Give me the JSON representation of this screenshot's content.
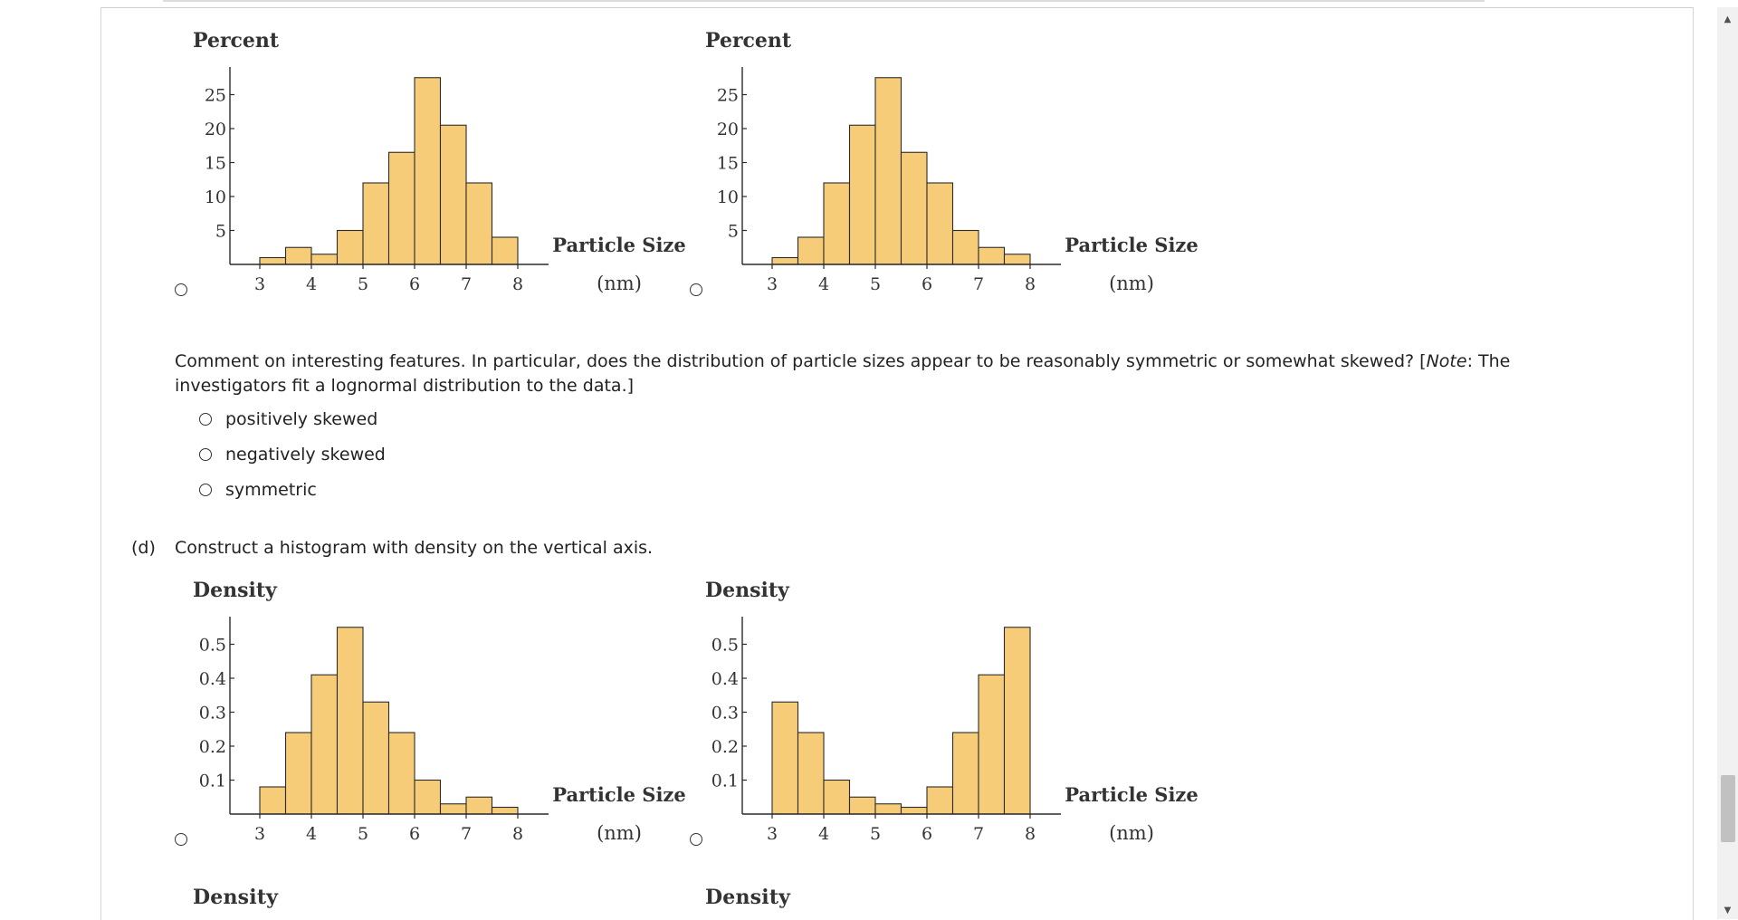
{
  "colors": {
    "bar_fill": "#f7cc78",
    "bar_stroke": "#2b2b2b",
    "axis": "#2b2b2b"
  },
  "question_c": {
    "prompt_part1": "Comment on interesting features. In particular, does the distribution of particle sizes appear to be reasonably symmetric or somewhat skewed? [",
    "prompt_note": "Note",
    "prompt_part2": ": The",
    "prompt_line2": "investigators fit a lognormal distribution to the data.]",
    "options": [
      {
        "label": "positively skewed"
      },
      {
        "label": "negatively skewed"
      },
      {
        "label": "symmetric"
      }
    ]
  },
  "question_d": {
    "part_label": "(d)",
    "prompt": "Construct a histogram with density on the vertical axis."
  },
  "tail_labels": [
    "Density",
    "Density"
  ],
  "chart_data": [
    {
      "type": "bar",
      "ylabel": "Percent",
      "xlabel_line1": "Particle Size",
      "xlabel_line2": "(nm)",
      "bin_edges": [
        3,
        3.5,
        4,
        4.5,
        5,
        5.5,
        6,
        6.5,
        7,
        7.5,
        8
      ],
      "values": [
        1,
        2.5,
        1.5,
        5,
        12,
        16.5,
        27.5,
        20.5,
        12,
        4
      ],
      "yticks": [
        5,
        10,
        15,
        20,
        25
      ],
      "ytick_labels": [
        "5",
        "10",
        "15",
        "20",
        "25"
      ],
      "xticks": [
        3,
        4,
        5,
        6,
        7,
        8
      ],
      "xtick_labels": [
        "3",
        "4",
        "5",
        "6",
        "7",
        "8"
      ],
      "ylim": [
        0,
        30
      ]
    },
    {
      "type": "bar",
      "ylabel": "Percent",
      "xlabel_line1": "Particle Size",
      "xlabel_line2": "(nm)",
      "bin_edges": [
        3,
        3.5,
        4,
        4.5,
        5,
        5.5,
        6,
        6.5,
        7,
        7.5,
        8
      ],
      "values": [
        1,
        4,
        12,
        20.5,
        27.5,
        16.5,
        12,
        5,
        2.5,
        1.5
      ],
      "yticks": [
        5,
        10,
        15,
        20,
        25
      ],
      "ytick_labels": [
        "5",
        "10",
        "15",
        "20",
        "25"
      ],
      "xticks": [
        3,
        4,
        5,
        6,
        7,
        8
      ],
      "xtick_labels": [
        "3",
        "4",
        "5",
        "6",
        "7",
        "8"
      ],
      "ylim": [
        0,
        30
      ]
    },
    {
      "type": "bar",
      "ylabel": "Density",
      "xlabel_line1": "Particle Size",
      "xlabel_line2": "(nm)",
      "bin_edges": [
        3,
        3.5,
        4,
        4.5,
        5,
        5.5,
        6,
        6.5,
        7,
        7.5,
        8
      ],
      "values": [
        0.08,
        0.24,
        0.41,
        0.55,
        0.33,
        0.24,
        0.1,
        0.03,
        0.05,
        0.02
      ],
      "yticks": [
        0.1,
        0.2,
        0.3,
        0.4,
        0.5
      ],
      "ytick_labels": [
        "0.1",
        "0.2",
        "0.3",
        "0.4",
        "0.5"
      ],
      "xticks": [
        3,
        4,
        5,
        6,
        7,
        8
      ],
      "xtick_labels": [
        "3",
        "4",
        "5",
        "6",
        "7",
        "8"
      ],
      "ylim": [
        0,
        0.6
      ]
    },
    {
      "type": "bar",
      "ylabel": "Density",
      "xlabel_line1": "Particle Size",
      "xlabel_line2": "(nm)",
      "bin_edges": [
        3,
        3.5,
        4,
        4.5,
        5,
        5.5,
        6,
        6.5,
        7,
        7.5,
        8
      ],
      "values": [
        0.33,
        0.24,
        0.1,
        0.05,
        0.03,
        0.02,
        0.08,
        0.24,
        0.41,
        0.55
      ],
      "yticks": [
        0.1,
        0.2,
        0.3,
        0.4,
        0.5
      ],
      "ytick_labels": [
        "0.1",
        "0.2",
        "0.3",
        "0.4",
        "0.5"
      ],
      "xticks": [
        3,
        4,
        5,
        6,
        7,
        8
      ],
      "xtick_labels": [
        "3",
        "4",
        "5",
        "6",
        "7",
        "8"
      ],
      "ylim": [
        0,
        0.6
      ]
    }
  ]
}
